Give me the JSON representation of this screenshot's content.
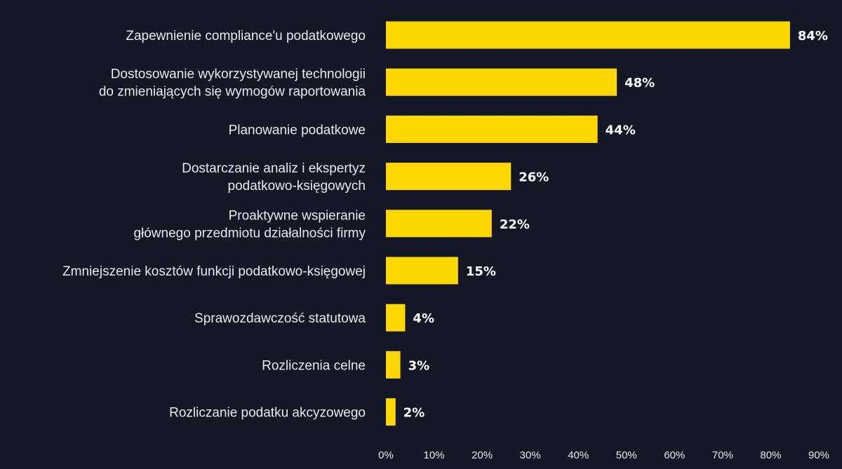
{
  "colors": {
    "background": "#141726",
    "bar": "#FFD700",
    "text": "#e9e9ee",
    "value_text": "#ffffff"
  },
  "chart_data": {
    "type": "bar",
    "orientation": "horizontal",
    "categories": [
      [
        "Zapewnienie compliance'u podatkowego"
      ],
      [
        "Dostosowanie wykorzystywanej technologii",
        "do zmieniających się wymogów raportowania"
      ],
      [
        "Planowanie podatkowe"
      ],
      [
        "Dostarczanie analiz i ekspertyz",
        "podatkowo-księgowych"
      ],
      [
        "Proaktywne wspieranie",
        "głównego przedmiotu działalności firmy"
      ],
      [
        "Zmniejszenie kosztów funkcji podatkowo-księgowej"
      ],
      [
        "Sprawozdawczość statutowa"
      ],
      [
        "Rozliczenia celne"
      ],
      [
        "Rozliczanie podatku akcyzowego"
      ]
    ],
    "values": [
      84,
      48,
      44,
      26,
      22,
      15,
      4,
      3,
      2
    ],
    "value_labels": [
      "84%",
      "48%",
      "44%",
      "26%",
      "22%",
      "15%",
      "4%",
      "3%",
      "2%"
    ],
    "xlim": [
      0,
      90
    ],
    "xticks": [
      0,
      10,
      20,
      30,
      40,
      50,
      60,
      70,
      80,
      90
    ],
    "xtick_labels": [
      "0%",
      "10%",
      "20%",
      "30%",
      "40%",
      "50%",
      "60%",
      "70%",
      "80%",
      "90%"
    ],
    "grid": false,
    "legend": "none",
    "title": "",
    "xlabel": "",
    "ylabel": ""
  }
}
